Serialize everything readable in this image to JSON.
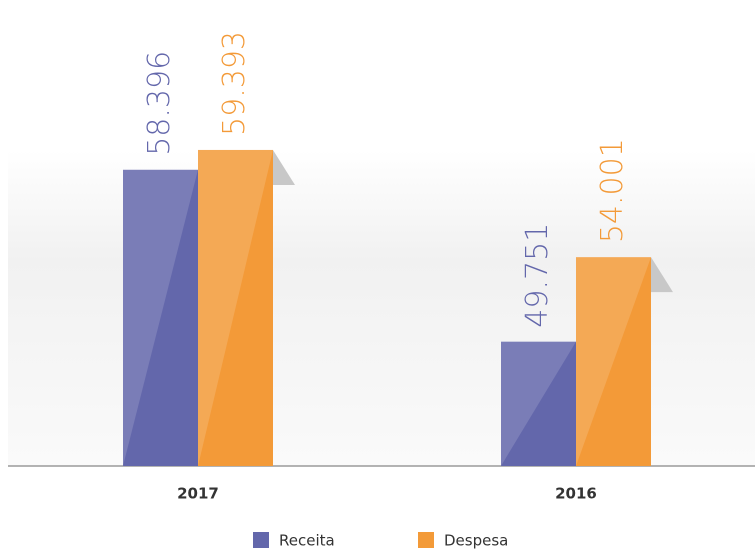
{
  "chart_data": {
    "type": "bar",
    "categories": [
      "2017",
      "2016"
    ],
    "series": [
      {
        "name": "Receita",
        "color": "#6367ab",
        "values": [
          58396,
          49751
        ],
        "value_labels": [
          "58.396",
          "49.751"
        ]
      },
      {
        "name": "Despesa",
        "color": "#f39a38",
        "values": [
          59393,
          54001
        ],
        "value_labels": [
          "59.393",
          "54.001"
        ]
      }
    ],
    "ylim": [
      43500,
      61000
    ]
  }
}
